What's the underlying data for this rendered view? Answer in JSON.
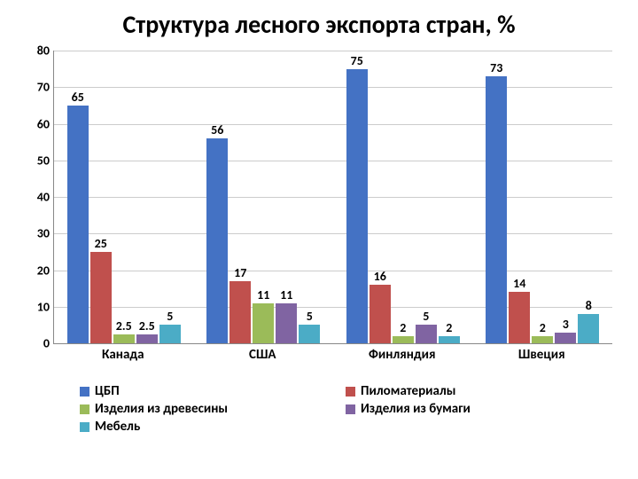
{
  "title": "Структура лесного экспорта стран, %",
  "title_fontsize": 28,
  "chart": {
    "type": "bar",
    "ymax": 80,
    "ytick_step": 10,
    "tick_fontsize": 14,
    "barlabel_fontsize": 14,
    "xlabel_fontsize": 15,
    "grid_color": "#cccccc",
    "axis_color": "#888888",
    "categories": [
      "Канада",
      "США",
      "Финляндия",
      "Швеция"
    ],
    "series": [
      {
        "name": "ЦБП",
        "color": "#4472c4",
        "values": [
          65,
          56,
          75,
          73
        ]
      },
      {
        "name": "Пиломатериалы",
        "color": "#c0504d",
        "values": [
          25,
          17,
          16,
          14
        ]
      },
      {
        "name": "Изделия из древесины",
        "color": "#9bbb59",
        "values": [
          2.5,
          11,
          2,
          2
        ]
      },
      {
        "name": "Изделия из бумаги",
        "color": "#8064a2",
        "values": [
          2.5,
          11,
          5,
          3
        ]
      },
      {
        "name": "Мебель",
        "color": "#4bacc6",
        "values": [
          5,
          5,
          2,
          8
        ]
      }
    ],
    "legend_fontsize": 15
  }
}
